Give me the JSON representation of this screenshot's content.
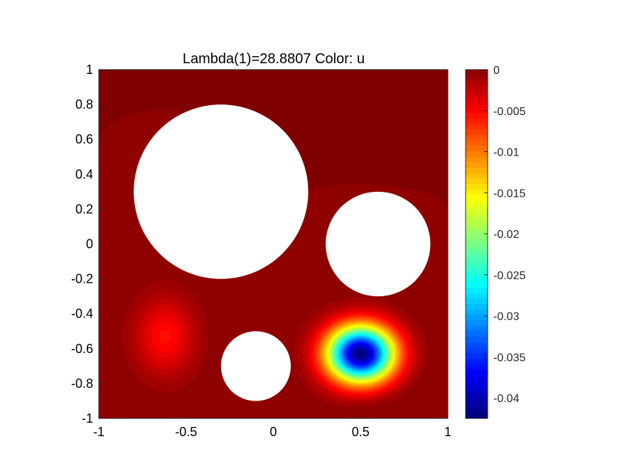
{
  "chart_data": {
    "type": "heatmap",
    "title": "Lambda(1)=28.8807   Color: u",
    "xlim": [
      -1,
      1
    ],
    "ylim": [
      -1,
      1
    ],
    "xticks": [
      "-1",
      "-0.5",
      "0",
      "0.5",
      "1"
    ],
    "xtick_values": [
      -1,
      -0.5,
      0,
      0.5,
      1
    ],
    "yticks": [
      "1",
      "0.8",
      "0.6",
      "0.4",
      "0.2",
      "0",
      "-0.2",
      "-0.4",
      "-0.6",
      "-0.8",
      "-1"
    ],
    "ytick_values": [
      1,
      0.8,
      0.6,
      0.4,
      0.2,
      0,
      -0.2,
      -0.4,
      -0.6,
      -0.8,
      -1
    ],
    "colormap": "jet",
    "color_range": [
      -0.0425,
      0
    ],
    "colorbar_ticks": [
      "0",
      "-0.005",
      "-0.01",
      "-0.015",
      "-0.02",
      "-0.025",
      "-0.03",
      "-0.035",
      "-0.04"
    ],
    "colorbar_tick_values": [
      0,
      -0.005,
      -0.01,
      -0.015,
      -0.02,
      -0.025,
      -0.03,
      -0.035,
      -0.04
    ],
    "holes": [
      {
        "cx": -0.3,
        "cy": 0.3,
        "r": 0.5
      },
      {
        "cx": 0.6,
        "cy": 0.0,
        "r": 0.3
      },
      {
        "cx": -0.1,
        "cy": -0.7,
        "r": 0.2
      }
    ],
    "extrema": [
      {
        "x": 0.5,
        "y": -0.63,
        "u": -0.0425
      },
      {
        "x": -0.62,
        "y": -0.53,
        "u": -0.0055
      }
    ],
    "grid": false
  }
}
